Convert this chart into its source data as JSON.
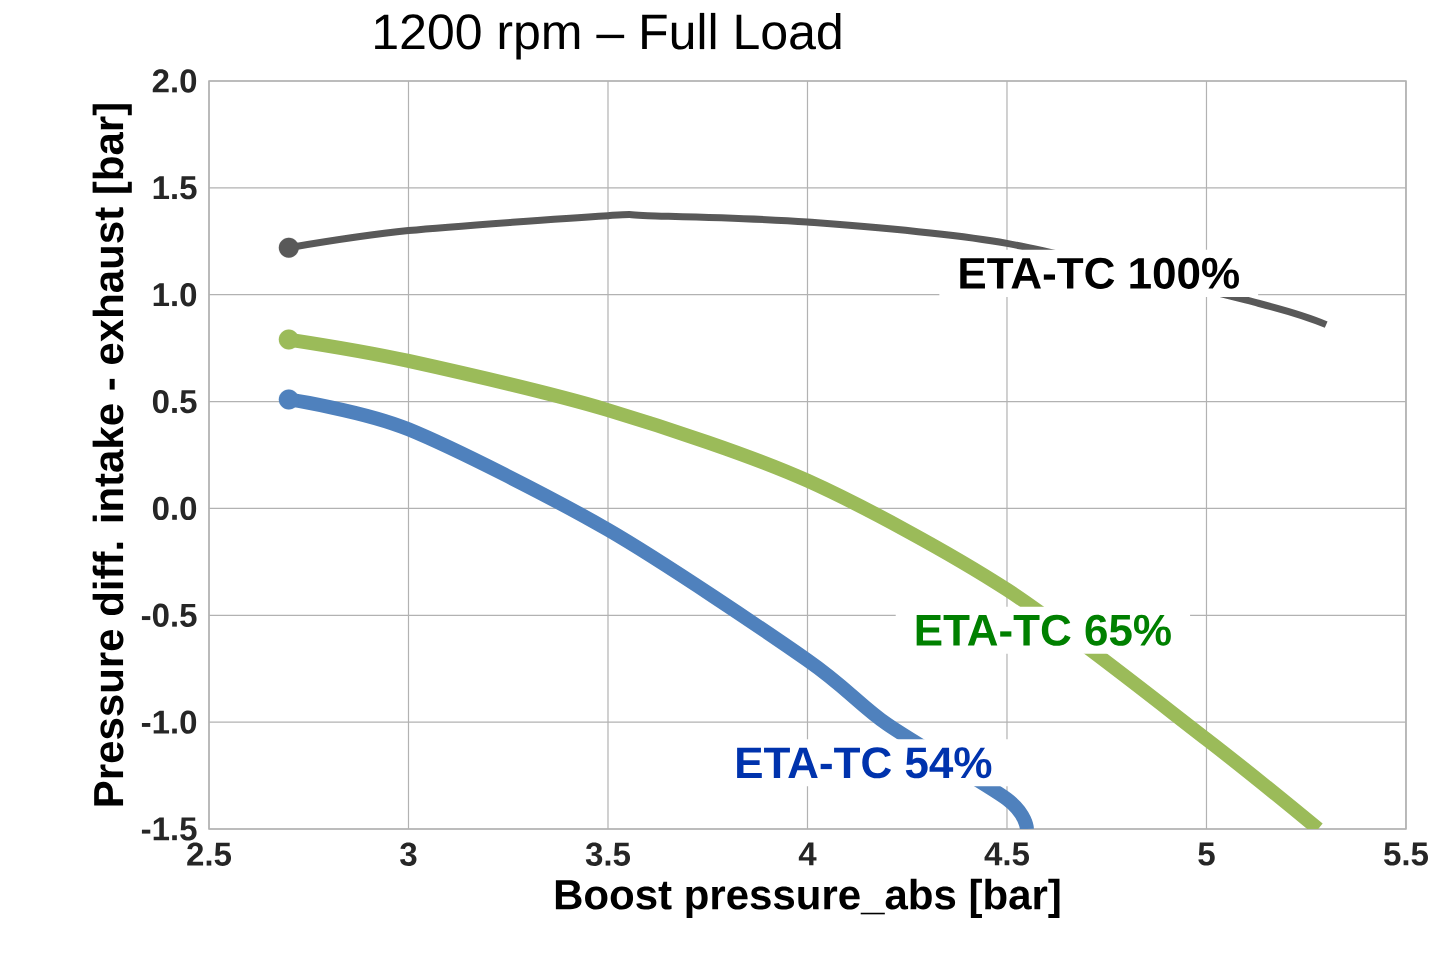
{
  "chart_data": {
    "type": "line",
    "title": "1200 rpm – Full Load",
    "xlabel": "Boost pressure_abs [bar]",
    "ylabel": "Pressure diff. intake - exhaust [bar]",
    "xlim": [
      2.5,
      5.5
    ],
    "ylim": [
      -1.5,
      2.0
    ],
    "xticks": [
      2.5,
      3,
      3.5,
      4,
      4.5,
      5,
      5.5
    ],
    "yticks": [
      {
        "value": -1.5,
        "label": "-1.5"
      },
      {
        "value": -1.0,
        "label": "-1.0"
      },
      {
        "value": -0.5,
        "label": "-0.5"
      },
      {
        "value": 0.0,
        "label": "0.0"
      },
      {
        "value": 0.5,
        "label": "0.5"
      },
      {
        "value": 1.0,
        "label": "1.0"
      },
      {
        "value": 1.5,
        "label": "1.5"
      },
      {
        "value": 2.0,
        "label": "2.0"
      }
    ],
    "grid": true,
    "series": [
      {
        "name": "ETA-TC 100%",
        "color": "#595959",
        "x": [
          2.7,
          3.0,
          3.5,
          3.6,
          4.0,
          4.5,
          5.0,
          5.13,
          5.3
        ],
        "values": [
          1.22,
          1.3,
          1.37,
          1.37,
          1.34,
          1.24,
          null,
          0.96,
          0.86
        ]
      },
      {
        "name": "ETA-TC 65%",
        "color": "#9bbb59",
        "x": [
          2.7,
          3.0,
          3.5,
          4.0,
          4.5,
          5.0,
          5.28
        ],
        "values": [
          0.79,
          0.69,
          0.46,
          0.13,
          -0.38,
          -1.08,
          -1.5
        ]
      },
      {
        "name": "ETA-TC 54%",
        "color": "#4f81bd",
        "x": [
          2.7,
          3.0,
          3.5,
          4.0,
          4.2,
          4.5,
          4.55
        ],
        "values": [
          0.51,
          0.37,
          -0.1,
          -0.71,
          -1.01,
          -1.36,
          -1.5
        ]
      },
      {
        "type": "scatter",
        "x": [
          2.7,
          2.7,
          2.7
        ],
        "values": [
          1.22,
          0.79,
          0.51
        ],
        "colors": [
          "#595959",
          "#9bbb59",
          "#4f81bd"
        ]
      }
    ]
  }
}
